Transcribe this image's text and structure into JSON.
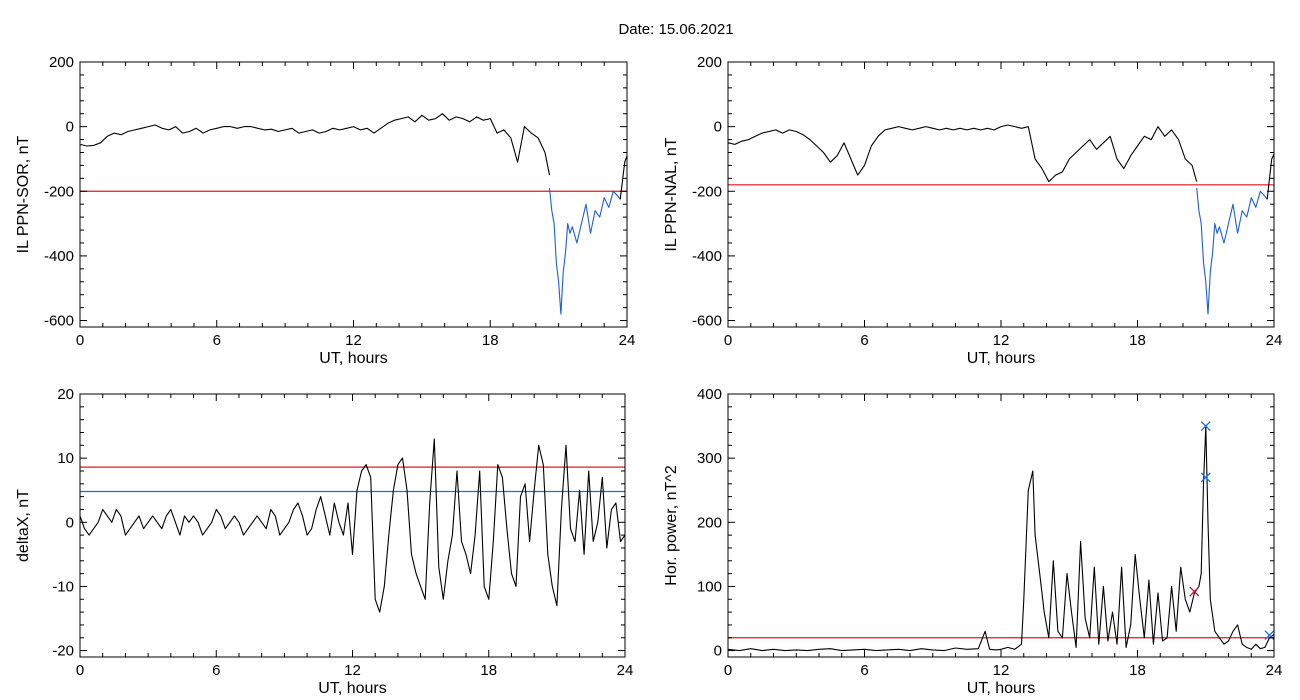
{
  "figure": {
    "title": "Date:  15.06.2021"
  },
  "chart_data": [
    {
      "id": "il_sor",
      "type": "line",
      "xlabel": "UT, hours",
      "ylabel": "IL PPN-SOR, nT",
      "xlim": [
        0,
        24
      ],
      "ylim": [
        -620,
        200
      ],
      "xticks": [
        0,
        6,
        12,
        18,
        24
      ],
      "yticks": [
        -600,
        -400,
        -200,
        0,
        200
      ],
      "threshold_lines": [
        {
          "value": -200,
          "color": "#e8141b"
        }
      ],
      "series": [
        {
          "color": "#000000",
          "x": [
            0,
            0.3,
            0.6,
            0.9,
            1.2,
            1.5,
            1.8,
            2.1,
            2.4,
            2.7,
            3.0,
            3.3,
            3.6,
            3.9,
            4.2,
            4.5,
            4.8,
            5.1,
            5.4,
            5.7,
            6.0,
            6.3,
            6.6,
            6.9,
            7.2,
            7.5,
            7.8,
            8.1,
            8.4,
            8.7,
            9.0,
            9.3,
            9.6,
            9.9,
            10.2,
            10.5,
            10.8,
            11.1,
            11.4,
            11.7,
            12.0,
            12.3,
            12.6,
            12.9,
            13.2,
            13.5,
            13.8,
            14.1,
            14.4,
            14.7,
            15.0,
            15.3,
            15.6,
            15.9,
            16.2,
            16.5,
            16.8,
            17.1,
            17.4,
            17.7,
            18.0,
            18.3,
            18.6,
            18.9,
            19.2,
            19.5,
            19.8,
            20.1,
            20.4,
            20.6
          ],
          "y": [
            -55,
            -60,
            -58,
            -50,
            -30,
            -20,
            -25,
            -15,
            -10,
            -5,
            0,
            5,
            -5,
            -10,
            0,
            -20,
            -15,
            -5,
            -20,
            -10,
            -5,
            0,
            0,
            -5,
            0,
            0,
            -5,
            -10,
            -8,
            -15,
            -10,
            -5,
            -20,
            -15,
            -10,
            -20,
            -15,
            -5,
            -10,
            -5,
            0,
            -10,
            -5,
            -20,
            -5,
            10,
            20,
            25,
            30,
            15,
            35,
            20,
            25,
            40,
            20,
            30,
            25,
            15,
            30,
            20,
            25,
            -20,
            -10,
            -35,
            -110,
            0,
            -20,
            -35,
            -80,
            -150
          ]
        },
        {
          "color": "#1f5cd6",
          "x": [
            20.6,
            20.7,
            20.8,
            20.9,
            21.0,
            21.1,
            21.2,
            21.3,
            21.4,
            21.5,
            21.6,
            21.8,
            22.0,
            22.2,
            22.4,
            22.6,
            22.8,
            23.0,
            23.2,
            23.4,
            23.6,
            23.7
          ],
          "y": [
            -190,
            -260,
            -300,
            -420,
            -480,
            -580,
            -450,
            -390,
            -300,
            -330,
            -310,
            -360,
            -300,
            -240,
            -330,
            -260,
            -280,
            -220,
            -250,
            -200,
            -215,
            -225
          ]
        },
        {
          "color": "#000000",
          "x": [
            23.7,
            23.8,
            23.9,
            24.0
          ],
          "y": [
            -225,
            -170,
            -110,
            -90
          ]
        }
      ]
    },
    {
      "id": "il_nal",
      "type": "line",
      "xlabel": "UT, hours",
      "ylabel": "IL PPN-NAL, nT",
      "xlim": [
        0,
        24
      ],
      "ylim": [
        -620,
        200
      ],
      "xticks": [
        0,
        6,
        12,
        18,
        24
      ],
      "yticks": [
        -600,
        -400,
        -200,
        0,
        200
      ],
      "threshold_lines": [
        {
          "value": -180,
          "color": "#e8141b"
        }
      ],
      "series": [
        {
          "color": "#000000",
          "x": [
            0,
            0.3,
            0.6,
            0.9,
            1.2,
            1.5,
            1.8,
            2.1,
            2.4,
            2.7,
            3.0,
            3.3,
            3.6,
            3.9,
            4.2,
            4.5,
            4.8,
            5.1,
            5.4,
            5.7,
            6.0,
            6.3,
            6.6,
            6.9,
            7.2,
            7.5,
            7.8,
            8.1,
            8.4,
            8.7,
            9.0,
            9.3,
            9.6,
            9.9,
            10.2,
            10.5,
            10.8,
            11.1,
            11.4,
            11.7,
            12.0,
            12.3,
            12.6,
            12.9,
            13.2,
            13.5,
            13.8,
            14.1,
            14.4,
            14.7,
            15.0,
            15.3,
            15.6,
            15.9,
            16.2,
            16.5,
            16.8,
            17.1,
            17.4,
            17.7,
            18.0,
            18.3,
            18.6,
            18.9,
            19.2,
            19.5,
            19.8,
            20.1,
            20.4,
            20.6
          ],
          "y": [
            -50,
            -55,
            -45,
            -40,
            -30,
            -20,
            -15,
            -10,
            -20,
            -10,
            -15,
            -25,
            -40,
            -60,
            -80,
            -110,
            -90,
            -50,
            -100,
            -150,
            -120,
            -60,
            -30,
            -10,
            -5,
            0,
            -5,
            -10,
            -5,
            0,
            -5,
            -10,
            -5,
            -10,
            -5,
            -10,
            -5,
            -10,
            -5,
            -10,
            0,
            5,
            0,
            -5,
            0,
            -100,
            -130,
            -170,
            -150,
            -140,
            -100,
            -80,
            -60,
            -40,
            -70,
            -50,
            -30,
            -100,
            -130,
            -90,
            -60,
            -30,
            -40,
            0,
            -30,
            -10,
            -40,
            -100,
            -120,
            -170
          ]
        },
        {
          "color": "#1f5cd6",
          "x": [
            20.6,
            20.7,
            20.8,
            20.9,
            21.0,
            21.1,
            21.2,
            21.3,
            21.4,
            21.5,
            21.6,
            21.8,
            22.0,
            22.2,
            22.4,
            22.6,
            22.8,
            23.0,
            23.2,
            23.4,
            23.6,
            23.7
          ],
          "y": [
            -190,
            -260,
            -300,
            -420,
            -480,
            -580,
            -450,
            -390,
            -300,
            -330,
            -310,
            -360,
            -300,
            -240,
            -330,
            -260,
            -280,
            -220,
            -250,
            -200,
            -215,
            -225
          ]
        },
        {
          "color": "#000000",
          "x": [
            23.7,
            23.8,
            23.9,
            24.0
          ],
          "y": [
            -225,
            -160,
            -100,
            -85
          ]
        }
      ]
    },
    {
      "id": "deltax",
      "type": "line",
      "xlabel": "UT, hours",
      "ylabel": "deltaX, nT",
      "xlim": [
        0,
        24
      ],
      "ylim": [
        -21,
        20
      ],
      "xticks": [
        0,
        6,
        12,
        18,
        24
      ],
      "yticks": [
        -20,
        -10,
        0,
        10,
        20
      ],
      "threshold_lines": [
        {
          "value": 8.6,
          "color": "#e8141b"
        },
        {
          "value": 4.8,
          "color": "#1f6fd6"
        }
      ],
      "series": [
        {
          "color": "#000000",
          "x": [
            0,
            0.2,
            0.4,
            0.6,
            0.8,
            1.0,
            1.2,
            1.4,
            1.6,
            1.8,
            2.0,
            2.2,
            2.4,
            2.6,
            2.8,
            3.0,
            3.2,
            3.4,
            3.6,
            3.8,
            4.0,
            4.2,
            4.4,
            4.6,
            4.8,
            5.0,
            5.2,
            5.4,
            5.6,
            5.8,
            6.0,
            6.2,
            6.4,
            6.6,
            6.8,
            7.0,
            7.2,
            7.4,
            7.6,
            7.8,
            8.0,
            8.2,
            8.4,
            8.6,
            8.8,
            9.0,
            9.2,
            9.4,
            9.6,
            9.8,
            10.0,
            10.2,
            10.4,
            10.6,
            10.8,
            11.0,
            11.2,
            11.4,
            11.6,
            11.8,
            12.0,
            12.2,
            12.4,
            12.6,
            12.8,
            13.0,
            13.2,
            13.4,
            13.6,
            13.8,
            14.0,
            14.2,
            14.4,
            14.6,
            14.8,
            15.0,
            15.2,
            15.4,
            15.6,
            15.8,
            16.0,
            16.2,
            16.4,
            16.6,
            16.8,
            17.0,
            17.2,
            17.4,
            17.6,
            17.8,
            18.0,
            18.2,
            18.4,
            18.6,
            18.8,
            19.0,
            19.2,
            19.4,
            19.6,
            19.8,
            20.0,
            20.2,
            20.4,
            20.6,
            20.8,
            21.0,
            21.2,
            21.4,
            21.6,
            21.8,
            22.0,
            22.2,
            22.4,
            22.6,
            22.8,
            23.0,
            23.2,
            23.4,
            23.6,
            23.8,
            24.0
          ],
          "y": [
            1,
            -1,
            -2,
            -1,
            0,
            2,
            1,
            0,
            2,
            1,
            -2,
            -1,
            0,
            1,
            -1,
            0,
            1,
            0,
            -1,
            1,
            2,
            0,
            -2,
            1,
            0,
            1,
            0,
            -2,
            -1,
            0,
            2,
            1,
            -1,
            0,
            1,
            0,
            -2,
            -1,
            0,
            1,
            0,
            -1,
            2,
            1,
            -2,
            -1,
            0,
            2,
            3,
            1,
            -2,
            -1,
            2,
            4,
            1,
            -2,
            3,
            0,
            -2,
            3,
            -5,
            5,
            8,
            9,
            7,
            -12,
            -14,
            -10,
            -2,
            5,
            9,
            10,
            5,
            -5,
            -8,
            -10,
            -12,
            3,
            13,
            -7,
            -12,
            -6,
            -2,
            8,
            -3,
            -5,
            -8,
            -2,
            8,
            -10,
            -12,
            -3,
            9,
            7,
            -1,
            -8,
            -10,
            4,
            6,
            -3,
            5,
            12,
            9,
            -5,
            -10,
            -13,
            2,
            12,
            -1,
            -3,
            5,
            -5,
            8,
            -3,
            0,
            7,
            -4,
            2,
            3,
            -3,
            -2
          ]
        }
      ]
    },
    {
      "id": "hor_power",
      "type": "line",
      "xlabel": "UT, hours",
      "ylabel": "Hor. power, nT^2",
      "xlim": [
        0,
        24
      ],
      "ylim": [
        -10,
        400
      ],
      "xticks": [
        0,
        6,
        12,
        18,
        24
      ],
      "yticks": [
        0,
        100,
        200,
        300,
        400
      ],
      "threshold_lines": [
        {
          "value": 20,
          "color": "#e8141b"
        }
      ],
      "series": [
        {
          "color": "#000000",
          "x": [
            0,
            0.5,
            1.0,
            1.5,
            2.0,
            2.5,
            3.0,
            3.5,
            4.0,
            4.5,
            5.0,
            5.5,
            6.0,
            6.5,
            7.0,
            7.5,
            8.0,
            8.5,
            9.0,
            9.5,
            10.0,
            10.5,
            11.0,
            11.3,
            11.5,
            11.8,
            12.0,
            12.3,
            12.6,
            12.9,
            13.0,
            13.2,
            13.4,
            13.5,
            13.7,
            13.9,
            14.1,
            14.3,
            14.5,
            14.7,
            14.9,
            15.1,
            15.3,
            15.5,
            15.7,
            15.9,
            16.1,
            16.3,
            16.5,
            16.7,
            16.9,
            17.1,
            17.3,
            17.5,
            17.7,
            17.9,
            18.1,
            18.3,
            18.5,
            18.7,
            18.9,
            19.1,
            19.3,
            19.5,
            19.7,
            19.9,
            20.1,
            20.3,
            20.5,
            20.7,
            20.8,
            20.9,
            21.0,
            21.1,
            21.2,
            21.4,
            21.6,
            21.8,
            22.0,
            22.2,
            22.4,
            22.6,
            22.8,
            23.0,
            23.2,
            23.4,
            23.6,
            23.8,
            24.0
          ],
          "y": [
            2,
            0,
            3,
            0,
            2,
            0,
            1,
            0,
            2,
            3,
            0,
            1,
            2,
            0,
            1,
            2,
            0,
            3,
            1,
            0,
            4,
            2,
            3,
            30,
            2,
            1,
            2,
            5,
            2,
            10,
            80,
            250,
            280,
            180,
            120,
            60,
            20,
            140,
            30,
            20,
            120,
            60,
            5,
            170,
            50,
            20,
            130,
            10,
            100,
            15,
            60,
            10,
            130,
            5,
            40,
            150,
            80,
            20,
            110,
            10,
            90,
            15,
            20,
            100,
            30,
            130,
            80,
            60,
            90,
            100,
            120,
            260,
            350,
            200,
            80,
            30,
            20,
            10,
            15,
            30,
            40,
            10,
            5,
            2,
            10,
            3,
            5,
            20,
            25
          ]
        }
      ],
      "markers": [
        {
          "x": 21.0,
          "y": 350,
          "color": "#1f6fd6",
          "symbol": "x"
        },
        {
          "x": 21.0,
          "y": 270,
          "color": "#1f6fd6",
          "symbol": "x"
        },
        {
          "x": 20.5,
          "y": 92,
          "color": "#c8102e",
          "symbol": "x"
        },
        {
          "x": 23.8,
          "y": 24,
          "color": "#1f6fd6",
          "symbol": "x"
        }
      ]
    }
  ]
}
